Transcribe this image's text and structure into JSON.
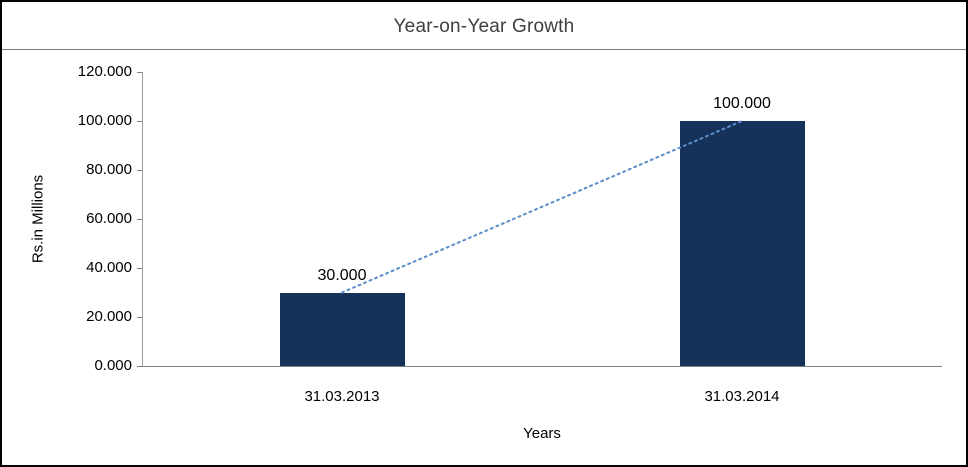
{
  "chart_data": {
    "type": "bar",
    "title": "Year-on-Year Growth",
    "xlabel": "Years",
    "ylabel": "Rs.in Millions",
    "categories": [
      "31.03.2013",
      "31.03.2014"
    ],
    "values": [
      30,
      100
    ],
    "data_labels": [
      "30.000",
      "100.000"
    ],
    "yticks": [
      "0.000",
      "20.000",
      "40.000",
      "60.000",
      "80.000",
      "100.000",
      "120.000"
    ],
    "ylim": [
      0,
      120
    ],
    "grid": false,
    "legend": false,
    "bar_color": "#16325B",
    "trendline": {
      "style": "dotted",
      "color": "#5B8DC8"
    }
  }
}
